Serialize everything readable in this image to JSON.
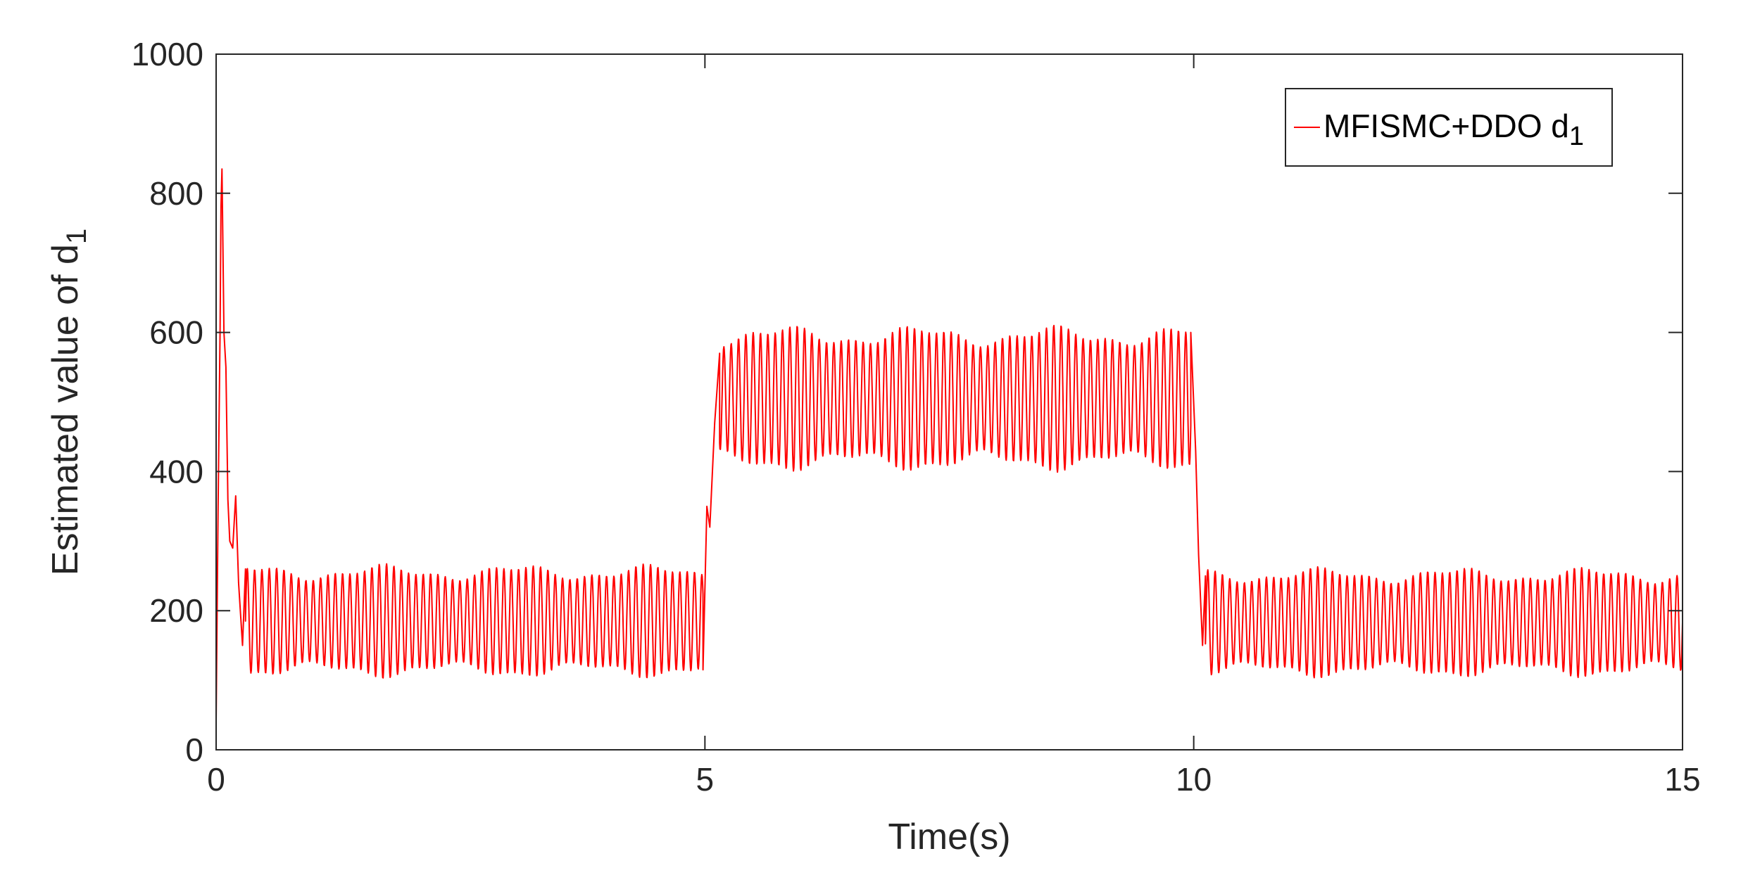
{
  "chart_data": {
    "type": "line",
    "title": "",
    "xlabel": "Time(s)",
    "ylabel": "Estimated value of  d",
    "ylabel_subscript": "1",
    "xlim": [
      0,
      15
    ],
    "ylim": [
      0,
      1000
    ],
    "xticks": [
      0,
      5,
      10,
      15
    ],
    "yticks": [
      0,
      200,
      400,
      600,
      800,
      1000
    ],
    "grid": false,
    "legend_position": "top-right",
    "series": [
      {
        "name": "MFISMC+DDO d",
        "name_subscript": "1",
        "color": "#ff0000",
        "segments": [
          {
            "t_start": 0.0,
            "t_end": 5.0,
            "mean": 185,
            "amplitude": 70
          },
          {
            "t_start": 5.0,
            "t_end": 10.0,
            "mean": 505,
            "amplitude": 90
          },
          {
            "t_start": 10.0,
            "t_end": 15.0,
            "mean": 183,
            "amplitude": 68
          }
        ],
        "oscillation_period_s": 0.075,
        "transient_points": [
          [
            0.0,
            40
          ],
          [
            0.02,
            350
          ],
          [
            0.04,
            600
          ],
          [
            0.05,
            780
          ],
          [
            0.06,
            835
          ],
          [
            0.07,
            720
          ],
          [
            0.08,
            600
          ],
          [
            0.1,
            550
          ],
          [
            0.12,
            360
          ],
          [
            0.14,
            300
          ],
          [
            0.17,
            290
          ],
          [
            0.2,
            365
          ],
          [
            0.23,
            240
          ],
          [
            0.27,
            150
          ],
          [
            0.3,
            260
          ]
        ],
        "step_points": [
          [
            4.98,
            115
          ],
          [
            5.02,
            350
          ],
          [
            5.05,
            320
          ],
          [
            5.1,
            470
          ],
          [
            5.15,
            570
          ]
        ],
        "drop_points": [
          [
            9.97,
            600
          ],
          [
            10.02,
            430
          ],
          [
            10.05,
            280
          ],
          [
            10.09,
            150
          ],
          [
            10.12,
            250
          ]
        ]
      }
    ]
  }
}
